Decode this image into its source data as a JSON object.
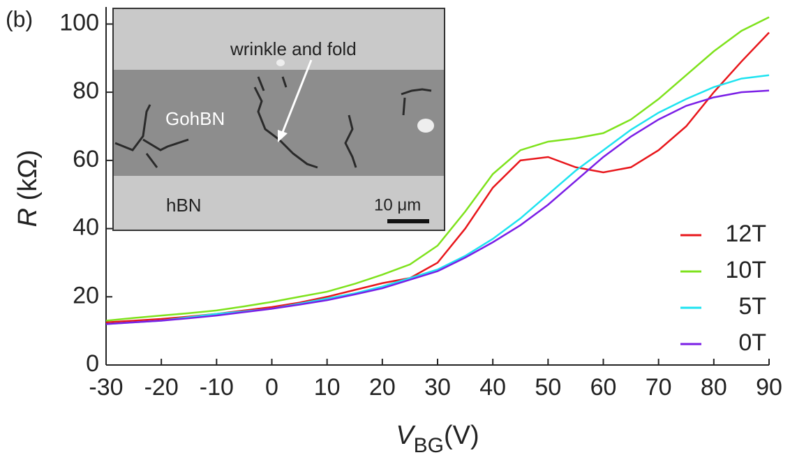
{
  "chart_data": {
    "type": "line",
    "panel_label": "(b)",
    "ylabel_symbol": "R",
    "ylabel_unit": "(kΩ)",
    "xlabel_symbol": "V",
    "xlabel_subscript": "BG",
    "xlabel_unit": "(V)",
    "x": [
      -30,
      -25,
      -20,
      -15,
      -10,
      -5,
      0,
      5,
      10,
      15,
      20,
      25,
      30,
      35,
      40,
      45,
      50,
      55,
      60,
      65,
      70,
      75,
      80,
      85,
      90
    ],
    "series": [
      {
        "name": "12T",
        "color": "#e8161b",
        "values": [
          12.5,
          13,
          13.5,
          14.2,
          15,
          16,
          17,
          18.3,
          20,
          22,
          24,
          25.5,
          30,
          40,
          52,
          60,
          61,
          58,
          56.5,
          58,
          63,
          70,
          80,
          89,
          97.5
        ]
      },
      {
        "name": "10T",
        "color": "#7ee21c",
        "values": [
          13,
          13.8,
          14.5,
          15.2,
          16,
          17.2,
          18.5,
          20,
          21.5,
          23.8,
          26.5,
          29.5,
          35,
          45,
          56,
          63,
          65.5,
          66.5,
          68,
          72,
          78,
          85,
          92,
          98,
          102
        ]
      },
      {
        "name": "5T",
        "color": "#1ee3f0",
        "values": [
          12,
          12.5,
          13,
          14,
          15,
          15.7,
          16.5,
          18,
          19.5,
          21,
          23,
          25.5,
          28,
          32,
          37,
          43,
          50,
          57,
          63,
          69,
          74,
          78,
          81.5,
          84,
          85
        ]
      },
      {
        "name": "0T",
        "color": "#7a1ee6",
        "values": [
          12,
          12.5,
          13,
          13.7,
          14.5,
          15.5,
          16.5,
          17.7,
          19,
          20.7,
          22.5,
          25,
          27.5,
          31.5,
          36,
          41,
          47,
          54,
          61,
          67,
          72,
          76,
          78.5,
          80,
          80.5
        ]
      }
    ],
    "xlim": [
      -30,
      90
    ],
    "xticks": [
      -30,
      -20,
      -10,
      0,
      10,
      20,
      30,
      40,
      50,
      60,
      70,
      80,
      90
    ],
    "ylim": [
      0,
      105
    ],
    "yticks": [
      0,
      20,
      40,
      60,
      80,
      100
    ],
    "legend": "lower right",
    "inset": {
      "annotation": "wrinkle and fold",
      "strip_label": "GohBN",
      "substrate_label": "hBN",
      "scale_bar": "10 μm"
    }
  }
}
